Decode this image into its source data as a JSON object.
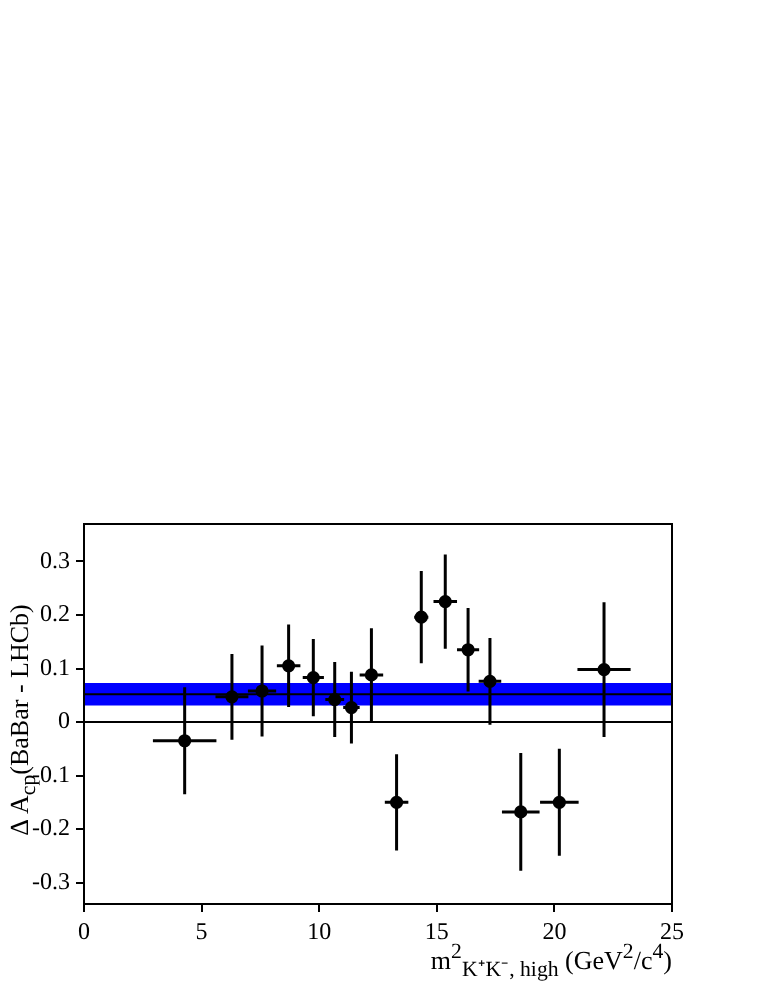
{
  "chart_data": {
    "type": "scatter",
    "xlabel": "m$^{2}$$_{K⁺K⁻, high}$ (GeV$^{2}$/c$^{4}$)",
    "ylabel": "Δ A$_{cp}$(BaBar - LHCb)",
    "x": [
      4.28,
      6.29,
      7.57,
      8.7,
      9.75,
      10.66,
      11.37,
      12.22,
      13.29,
      14.34,
      15.36,
      16.33,
      17.26,
      18.57,
      20.21,
      22.11
    ],
    "series": [
      {
        "color": "#000000",
        "values": [
          -0.035,
          0.047,
          0.058,
          0.105,
          0.083,
          0.042,
          0.027,
          0.088,
          -0.15,
          0.196,
          0.225,
          0.135,
          0.076,
          -0.168,
          -0.15,
          0.098
        ],
        "errors": [
          0.1,
          0.08,
          0.085,
          0.077,
          0.072,
          0.07,
          0.067,
          0.087,
          0.09,
          0.086,
          0.088,
          0.078,
          0.081,
          0.11,
          0.1,
          0.126
        ],
        "xerrors": [
          1.35,
          0.7,
          0.6,
          0.5,
          0.45,
          0.4,
          0.35,
          0.5,
          0.5,
          0.3,
          0.5,
          0.47,
          0.48,
          0.8,
          0.82,
          1.13
        ]
      }
    ],
    "xlim": [
      0,
      25
    ],
    "xticks": [
      0,
      5,
      10,
      15,
      20,
      25
    ],
    "ylim": [
      -0.34,
      0.37
    ],
    "yticks": [
      -0.3,
      -0.2,
      -0.1,
      0,
      0.1,
      0.2,
      0.3
    ],
    "bands": [
      {
        "axis": "y",
        "from": 0.031,
        "to": 0.073,
        "color": "#0000ff"
      }
    ],
    "ref_lines": [
      {
        "axis": "y",
        "value": 0.052,
        "color": "#000000"
      },
      {
        "axis": "y",
        "value": 0,
        "color": "#000000"
      }
    ],
    "marker": "circle",
    "grid": false,
    "legend": false
  }
}
